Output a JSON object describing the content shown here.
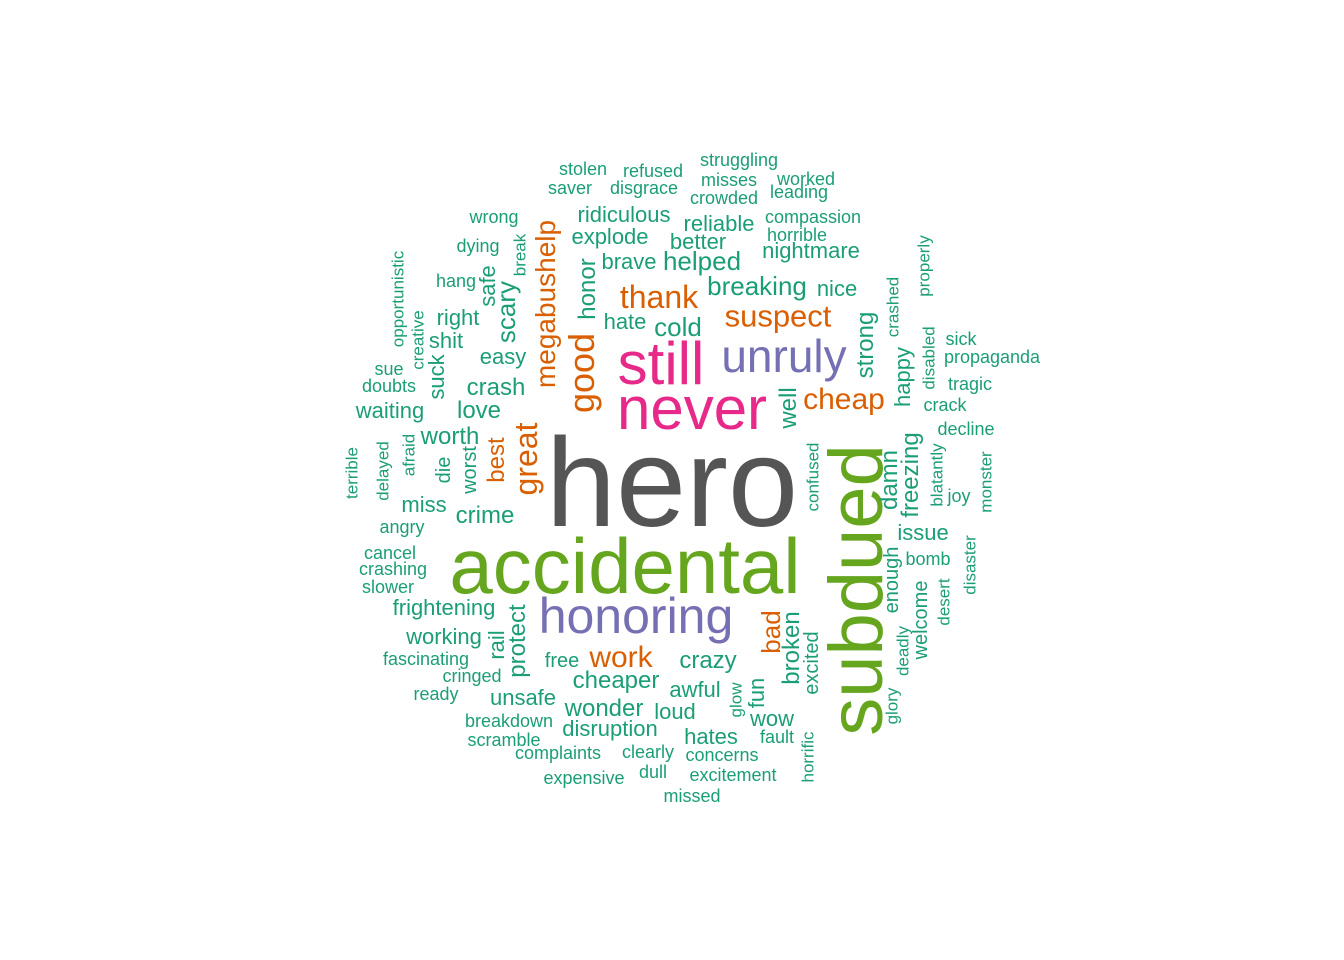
{
  "palette": {
    "teal": "#1b9e77",
    "orange": "#d95f02",
    "purple": "#7570b3",
    "magenta": "#e7298a",
    "green": "#66a61e",
    "grey": "#555555"
  },
  "words": [
    {
      "text": "hero",
      "color": "grey"
    },
    {
      "text": "accidental",
      "color": "green"
    },
    {
      "text": "subdued",
      "color": "green"
    },
    {
      "text": "never",
      "color": "magenta"
    },
    {
      "text": "still",
      "color": "magenta"
    },
    {
      "text": "honoring",
      "color": "purple"
    },
    {
      "text": "unruly",
      "color": "purple"
    },
    {
      "text": "megabushelp",
      "color": "orange"
    },
    {
      "text": "good",
      "color": "orange"
    },
    {
      "text": "great",
      "color": "orange"
    },
    {
      "text": "thank",
      "color": "orange"
    },
    {
      "text": "suspect",
      "color": "orange"
    },
    {
      "text": "cheap",
      "color": "orange"
    },
    {
      "text": "work",
      "color": "orange"
    },
    {
      "text": "best",
      "color": "orange"
    },
    {
      "text": "bad",
      "color": "orange"
    },
    {
      "text": "stolen",
      "color": "teal"
    },
    {
      "text": "refused",
      "color": "teal"
    },
    {
      "text": "struggling",
      "color": "teal"
    },
    {
      "text": "saver",
      "color": "teal"
    },
    {
      "text": "disgrace",
      "color": "teal"
    },
    {
      "text": "misses",
      "color": "teal"
    },
    {
      "text": "worked",
      "color": "teal"
    },
    {
      "text": "crowded",
      "color": "teal"
    },
    {
      "text": "leading",
      "color": "teal"
    },
    {
      "text": "wrong",
      "color": "teal"
    },
    {
      "text": "ridiculous",
      "color": "teal"
    },
    {
      "text": "compassion",
      "color": "teal"
    },
    {
      "text": "reliable",
      "color": "teal"
    },
    {
      "text": "horrible",
      "color": "teal"
    },
    {
      "text": "explode",
      "color": "teal"
    },
    {
      "text": "better",
      "color": "teal"
    },
    {
      "text": "dying",
      "color": "teal"
    },
    {
      "text": "break",
      "color": "teal"
    },
    {
      "text": "nightmare",
      "color": "teal"
    },
    {
      "text": "properly",
      "color": "teal"
    },
    {
      "text": "brave",
      "color": "teal"
    },
    {
      "text": "helped",
      "color": "teal"
    },
    {
      "text": "hang",
      "color": "teal"
    },
    {
      "text": "safe",
      "color": "teal"
    },
    {
      "text": "honor",
      "color": "teal"
    },
    {
      "text": "breaking",
      "color": "teal"
    },
    {
      "text": "opportunistic",
      "color": "teal"
    },
    {
      "text": "crashed",
      "color": "teal"
    },
    {
      "text": "nice",
      "color": "teal"
    },
    {
      "text": "scary",
      "color": "teal"
    },
    {
      "text": "right",
      "color": "teal"
    },
    {
      "text": "creative",
      "color": "teal"
    },
    {
      "text": "hate",
      "color": "teal"
    },
    {
      "text": "cold",
      "color": "teal"
    },
    {
      "text": "strong",
      "color": "teal"
    },
    {
      "text": "sick",
      "color": "teal"
    },
    {
      "text": "shit",
      "color": "teal"
    },
    {
      "text": "disabled",
      "color": "teal"
    },
    {
      "text": "easy",
      "color": "teal"
    },
    {
      "text": "sue",
      "color": "teal"
    },
    {
      "text": "suck",
      "color": "teal"
    },
    {
      "text": "propaganda",
      "color": "teal"
    },
    {
      "text": "happy",
      "color": "teal"
    },
    {
      "text": "doubts",
      "color": "teal"
    },
    {
      "text": "crash",
      "color": "teal"
    },
    {
      "text": "tragic",
      "color": "teal"
    },
    {
      "text": "crack",
      "color": "teal"
    },
    {
      "text": "waiting",
      "color": "teal"
    },
    {
      "text": "love",
      "color": "teal"
    },
    {
      "text": "well",
      "color": "teal"
    },
    {
      "text": "worth",
      "color": "teal"
    },
    {
      "text": "decline",
      "color": "teal"
    },
    {
      "text": "afraid",
      "color": "teal"
    },
    {
      "text": "terrible",
      "color": "teal"
    },
    {
      "text": "delayed",
      "color": "teal"
    },
    {
      "text": "die",
      "color": "teal"
    },
    {
      "text": "worst",
      "color": "teal"
    },
    {
      "text": "confused",
      "color": "teal"
    },
    {
      "text": "damn",
      "color": "teal"
    },
    {
      "text": "freezing",
      "color": "teal"
    },
    {
      "text": "blatantly",
      "color": "teal"
    },
    {
      "text": "monster",
      "color": "teal"
    },
    {
      "text": "joy",
      "color": "teal"
    },
    {
      "text": "miss",
      "color": "teal"
    },
    {
      "text": "crime",
      "color": "teal"
    },
    {
      "text": "angry",
      "color": "teal"
    },
    {
      "text": "issue",
      "color": "teal"
    },
    {
      "text": "cancel",
      "color": "teal"
    },
    {
      "text": "crashing",
      "color": "teal"
    },
    {
      "text": "bomb",
      "color": "teal"
    },
    {
      "text": "enough",
      "color": "teal"
    },
    {
      "text": "disaster",
      "color": "teal"
    },
    {
      "text": "slower",
      "color": "teal"
    },
    {
      "text": "welcome",
      "color": "teal"
    },
    {
      "text": "desert",
      "color": "teal"
    },
    {
      "text": "frightening",
      "color": "teal"
    },
    {
      "text": "rail",
      "color": "teal"
    },
    {
      "text": "protect",
      "color": "teal"
    },
    {
      "text": "broken",
      "color": "teal"
    },
    {
      "text": "working",
      "color": "teal"
    },
    {
      "text": "deadly",
      "color": "teal"
    },
    {
      "text": "excited",
      "color": "teal"
    },
    {
      "text": "fascinating",
      "color": "teal"
    },
    {
      "text": "free",
      "color": "teal"
    },
    {
      "text": "crazy",
      "color": "teal"
    },
    {
      "text": "cringed",
      "color": "teal"
    },
    {
      "text": "cheaper",
      "color": "teal"
    },
    {
      "text": "awful",
      "color": "teal"
    },
    {
      "text": "glow",
      "color": "teal"
    },
    {
      "text": "fun",
      "color": "teal"
    },
    {
      "text": "ready",
      "color": "teal"
    },
    {
      "text": "unsafe",
      "color": "teal"
    },
    {
      "text": "glory",
      "color": "teal"
    },
    {
      "text": "wonder",
      "color": "teal"
    },
    {
      "text": "loud",
      "color": "teal"
    },
    {
      "text": "wow",
      "color": "teal"
    },
    {
      "text": "breakdown",
      "color": "teal"
    },
    {
      "text": "disruption",
      "color": "teal"
    },
    {
      "text": "fault",
      "color": "teal"
    },
    {
      "text": "scramble",
      "color": "teal"
    },
    {
      "text": "hates",
      "color": "teal"
    },
    {
      "text": "horrific",
      "color": "teal"
    },
    {
      "text": "complaints",
      "color": "teal"
    },
    {
      "text": "clearly",
      "color": "teal"
    },
    {
      "text": "concerns",
      "color": "teal"
    },
    {
      "text": "dull",
      "color": "teal"
    },
    {
      "text": "excitement",
      "color": "teal"
    },
    {
      "text": "expensive",
      "color": "teal"
    },
    {
      "text": "missed",
      "color": "teal"
    }
  ]
}
